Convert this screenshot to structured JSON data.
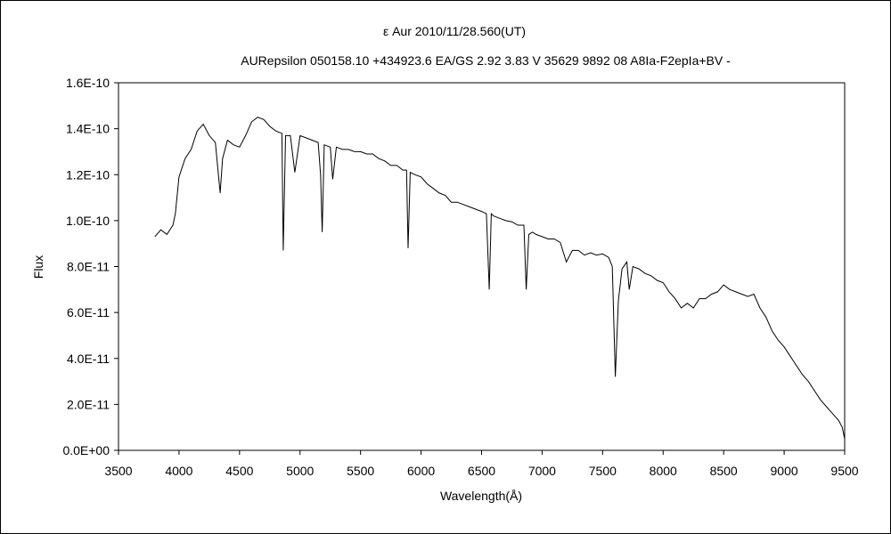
{
  "chart_data": {
    "type": "line",
    "title": "ε Aur   2010/11/28.560(UT)",
    "subtitle": "AURepsilon 050158.10 +434923.6 EA/GS 2.92 3.83 V 35629 9892 08 A8Ia-F2epIa+BV -",
    "xlabel": "Wavelength(Å)",
    "ylabel": "Flux",
    "xlim": [
      3500,
      9500
    ],
    "ylim": [
      0,
      1.6e-10
    ],
    "x_ticks": [
      3500,
      4000,
      4500,
      5000,
      5500,
      6000,
      6500,
      7000,
      7500,
      8000,
      8500,
      9000,
      9500
    ],
    "x_tick_labels": [
      "3500",
      "4000",
      "4500",
      "5000",
      "5500",
      "6000",
      "6500",
      "7000",
      "7500",
      "8000",
      "8500",
      "9000",
      "9500"
    ],
    "y_ticks": [
      0,
      2e-11,
      4e-11,
      6e-11,
      8e-11,
      1e-10,
      1.2e-10,
      1.4e-10,
      1.6e-10
    ],
    "y_tick_labels": [
      "0.0E+00",
      "2.0E-11",
      "4.0E-11",
      "6.0E-11",
      "8.0E-11",
      "1.0E-10",
      "1.2E-10",
      "1.4E-10",
      "1.6E-10"
    ],
    "grid": false,
    "legend": "none",
    "series": [
      {
        "color": "#000000",
        "x": [
          3800,
          3850,
          3900,
          3950,
          3970,
          4000,
          4050,
          4100,
          4150,
          4200,
          4250,
          4300,
          4340,
          4360,
          4400,
          4450,
          4500,
          4550,
          4600,
          4650,
          4700,
          4750,
          4800,
          4850,
          4861,
          4880,
          4920,
          4957,
          5000,
          5050,
          5100,
          5150,
          5170,
          5183,
          5200,
          5250,
          5270,
          5300,
          5350,
          5400,
          5450,
          5500,
          5550,
          5600,
          5650,
          5700,
          5750,
          5800,
          5850,
          5880,
          5893,
          5910,
          5950,
          6000,
          6050,
          6100,
          6150,
          6200,
          6250,
          6300,
          6350,
          6400,
          6450,
          6500,
          6540,
          6563,
          6580,
          6600,
          6650,
          6700,
          6750,
          6800,
          6850,
          6869,
          6890,
          6920,
          6950,
          7000,
          7050,
          7100,
          7150,
          7200,
          7250,
          7300,
          7350,
          7400,
          7450,
          7500,
          7550,
          7580,
          7605,
          7630,
          7660,
          7700,
          7720,
          7750,
          7800,
          7850,
          7900,
          7950,
          8000,
          8050,
          8100,
          8150,
          8200,
          8250,
          8300,
          8350,
          8400,
          8450,
          8500,
          8550,
          8600,
          8650,
          8700,
          8750,
          8800,
          8850,
          8900,
          8950,
          9000,
          9050,
          9100,
          9150,
          9200,
          9250,
          9300,
          9350,
          9400,
          9450,
          9480,
          9500
        ],
        "y": [
          9.3e-11,
          9.6e-11,
          9.4e-11,
          9.8e-11,
          1.03e-10,
          1.19e-10,
          1.27e-10,
          1.31e-10,
          1.39e-10,
          1.42e-10,
          1.37e-10,
          1.34e-10,
          1.12e-10,
          1.27e-10,
          1.35e-10,
          1.33e-10,
          1.32e-10,
          1.37e-10,
          1.43e-10,
          1.45e-10,
          1.44e-10,
          1.41e-10,
          1.39e-10,
          1.38e-10,
          8.7e-11,
          1.37e-10,
          1.37e-10,
          1.21e-10,
          1.37e-10,
          1.36e-10,
          1.35e-10,
          1.34e-10,
          1.2e-10,
          9.5e-11,
          1.33e-10,
          1.32e-10,
          1.18e-10,
          1.32e-10,
          1.31e-10,
          1.31e-10,
          1.3e-10,
          1.3e-10,
          1.29e-10,
          1.29e-10,
          1.27e-10,
          1.26e-10,
          1.24e-10,
          1.24e-10,
          1.22e-10,
          1.22e-10,
          8.8e-11,
          1.21e-10,
          1.2e-10,
          1.19e-10,
          1.16e-10,
          1.14e-10,
          1.12e-10,
          1.11e-10,
          1.08e-10,
          1.08e-10,
          1.07e-10,
          1.06e-10,
          1.05e-10,
          1.04e-10,
          1.03e-10,
          7e-11,
          1.03e-10,
          1.02e-10,
          1.01e-10,
          1e-10,
          9.95e-11,
          9.8e-11,
          9.8e-11,
          7e-11,
          9.4e-11,
          9.5e-11,
          9.4e-11,
          9.3e-11,
          9.2e-11,
          9.2e-11,
          9.05e-11,
          8.2e-11,
          8.7e-11,
          8.7e-11,
          8.5e-11,
          8.6e-11,
          8.5e-11,
          8.55e-11,
          8.4e-11,
          8e-11,
          3.2e-11,
          6.5e-11,
          7.9e-11,
          8.2e-11,
          7e-11,
          8e-11,
          7.9e-11,
          7.7e-11,
          7.6e-11,
          7.4e-11,
          7.3e-11,
          6.9e-11,
          6.6e-11,
          6.2e-11,
          6.4e-11,
          6.2e-11,
          6.6e-11,
          6.6e-11,
          6.8e-11,
          6.9e-11,
          7.2e-11,
          7e-11,
          6.9e-11,
          6.8e-11,
          6.7e-11,
          6.8e-11,
          6.2e-11,
          5.8e-11,
          5.2e-11,
          4.8e-11,
          4.5e-11,
          4.1e-11,
          3.7e-11,
          3.3e-11,
          3e-11,
          2.6e-11,
          2.2e-11,
          1.9e-11,
          1.6e-11,
          1.3e-11,
          1e-11,
          5e-12
        ]
      }
    ]
  }
}
